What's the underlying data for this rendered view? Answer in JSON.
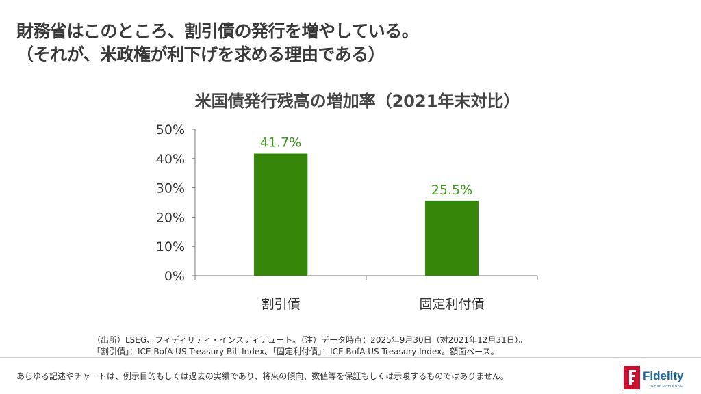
{
  "heading": {
    "line1": "財務省はこのところ、割引債の発行を増やしている。",
    "line2": "（それが、米政権が利下げを求める理由である）"
  },
  "chart_data": {
    "type": "bar",
    "title": "米国債発行残高の増加率（2021年末対比）",
    "categories": [
      "割引債",
      "固定利付債"
    ],
    "values": [
      41.7,
      25.5
    ],
    "data_labels": [
      "41.7%",
      "25.5%"
    ],
    "yticks": [
      "0%",
      "10%",
      "20%",
      "30%",
      "40%",
      "50%"
    ],
    "ylim": [
      0,
      50
    ],
    "grid": false,
    "bar_color": "#36860a",
    "label_color": "#3f9a1c"
  },
  "notes": {
    "line1": "（出所）LSEG、フィディリティ・インスティテュート。（注）データ時点：2025年9月30日（対2021年12月31日）。",
    "line2": "「割引債」：ICE BofA US Treasury Bill Index、「固定利付債」：ICE BofA US Treasury Index。額面ベース。"
  },
  "disclaimer": "あらゆる記述やチャートは、例示目的もしくは過去の実績であり、将来の傾向、数値等を保証もしくは示唆するものではありません。",
  "logo": {
    "name": "Fidelity",
    "sub": "INTERNATIONAL",
    "color": "#c8102e",
    "text_color": "#1a6aa0"
  }
}
